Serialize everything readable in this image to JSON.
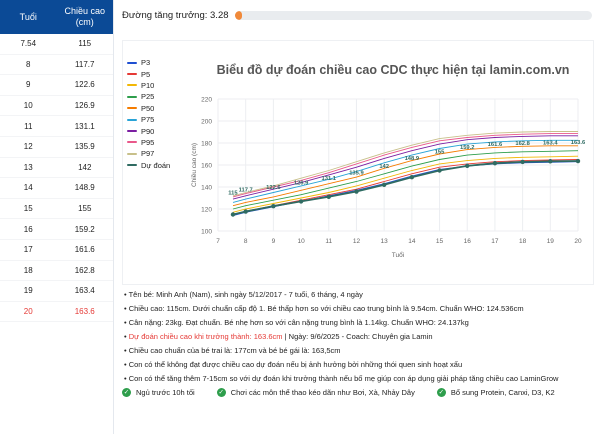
{
  "table": {
    "headers": [
      "Tuổi",
      "Chiều cao\n(cm)"
    ],
    "rows": [
      [
        "7.54",
        "115"
      ],
      [
        "8",
        "117.7"
      ],
      [
        "9",
        "122.6"
      ],
      [
        "10",
        "126.9"
      ],
      [
        "11",
        "131.1"
      ],
      [
        "12",
        "135.9"
      ],
      [
        "13",
        "142"
      ],
      [
        "14",
        "148.9"
      ],
      [
        "15",
        "155"
      ],
      [
        "16",
        "159.2"
      ],
      [
        "17",
        "161.6"
      ],
      [
        "18",
        "162.8"
      ],
      [
        "19",
        "163.4"
      ],
      [
        "20",
        "163.6"
      ]
    ],
    "highlight_index": 13,
    "highlight_color": "#e53935"
  },
  "growth_rate": {
    "label": "Đường tăng trưởng: 3.28",
    "fill_fraction": 0.02,
    "color": "#f0893a"
  },
  "chart_data": {
    "type": "line",
    "title": "Biểu đồ dự đoán chiều cao CDC thực hiện tại lamin.com.vn",
    "xlabel": "Tuổi",
    "ylabel": "Chiều cao (cm)",
    "xlim": [
      7,
      20
    ],
    "ylim": [
      100,
      220
    ],
    "xticks": [
      7,
      8,
      9,
      10,
      11,
      12,
      13,
      14,
      15,
      16,
      17,
      18,
      19,
      20
    ],
    "yticks": [
      100,
      120,
      140,
      160,
      180,
      200,
      220
    ],
    "grid": true,
    "legend_position": "left",
    "x": [
      7.54,
      8,
      9,
      10,
      11,
      12,
      13,
      14,
      15,
      16,
      17,
      18,
      19,
      20
    ],
    "series": [
      {
        "name": "P3",
        "color": "#1f4fd1",
        "values": [
          114,
          117,
          122,
          127,
          132,
          137,
          143,
          150,
          156,
          159,
          161,
          162,
          162.5,
          163
        ]
      },
      {
        "name": "P5",
        "color": "#e53935",
        "values": [
          115,
          118,
          123,
          128,
          133,
          138,
          145,
          152,
          158,
          161,
          163,
          164,
          164.5,
          165
        ]
      },
      {
        "name": "P10",
        "color": "#f2b705",
        "values": [
          117,
          120,
          125,
          130,
          135,
          141,
          148,
          155,
          161,
          164,
          166,
          167,
          167.5,
          168
        ]
      },
      {
        "name": "P25",
        "color": "#2e9e4c",
        "values": [
          120,
          123,
          128,
          133,
          139,
          145,
          152,
          159,
          165,
          169,
          171,
          172,
          172.5,
          173
        ]
      },
      {
        "name": "P50",
        "color": "#f57c00",
        "values": [
          123,
          126,
          131,
          137,
          143,
          149,
          157,
          164,
          170,
          174,
          176,
          177,
          177.5,
          177.5
        ]
      },
      {
        "name": "P75",
        "color": "#29a3d6",
        "values": [
          126,
          129,
          135,
          141,
          147,
          154,
          162,
          169,
          175,
          179,
          181,
          182,
          182.5,
          182.5
        ]
      },
      {
        "name": "P90",
        "color": "#7b1fa2",
        "values": [
          129,
          132,
          138,
          144,
          151,
          158,
          166,
          173,
          179,
          183,
          185,
          186,
          186.5,
          186.5
        ]
      },
      {
        "name": "P95",
        "color": "#e9588a",
        "values": [
          131,
          134,
          140,
          146,
          153,
          161,
          169,
          176,
          182,
          185,
          187,
          188,
          188.5,
          188.5
        ]
      },
      {
        "name": "P97",
        "color": "#c8c08a",
        "values": [
          132,
          135,
          141,
          148,
          155,
          163,
          171,
          178,
          184,
          187,
          189,
          190,
          190.5,
          190.5
        ]
      },
      {
        "name": "Dự đoán",
        "color": "#2f6b62",
        "values": [
          115,
          117.7,
          122.6,
          126.9,
          131.1,
          135.9,
          142,
          148.9,
          155,
          159.2,
          161.6,
          162.8,
          163.4,
          163.6
        ]
      }
    ],
    "point_labels": [
      "115",
      "117.7",
      "122.6",
      "126.9",
      "131.1",
      "135.9",
      "142",
      "148.9",
      "155",
      "159.2",
      "161.6",
      "162.8",
      "163.4",
      "163.6"
    ]
  },
  "info": {
    "lines": [
      {
        "text": "Tên bé: Minh Anh (Nam), sinh ngày 5/12/2017 - 7 tuổi, 6 tháng, 4 ngày"
      },
      {
        "text": "Chiều cao: 115cm. Dưới chuẩn cấp độ 1. Bé thấp hơn so với chiều cao trung bình là 9.54cm. Chuẩn WHO: 124.536cm"
      },
      {
        "text": "Cân nặng: 23kg. Đạt chuẩn. Bé nhẹ hơn so với cân nặng trung bình là 1.14kg. Chuẩn WHO: 24.137kg"
      },
      {
        "red": "Dự đoán chiều cao khi trưởng thành: 163.6cm",
        "rest": " | Ngày: 9/6/2025 - Coach: Chuyên gia Lamin"
      },
      {
        "text": "Chiều cao chuẩn của bé trai là: 177cm và bé bé gái là: 163,5cm"
      },
      {
        "text": "Con có thể không đạt được chiều cao dự đoán nếu bị ảnh hưởng bởi những thói quen sinh hoạt xấu"
      },
      {
        "text": "Con có thể tăng thêm 7-15cm so với dự đoán khi trưởng thành nếu bố mẹ giúp con áp dụng giải pháp tăng chiều cao LaminGrow"
      }
    ],
    "tips": [
      "Ngủ trước 10h tối",
      "Chơi các môn thể thao kéo dãn như Bơi, Xà, Nhảy Dây",
      "Bổ sung Protein, Canxi, D3, K2"
    ],
    "bullet": "•"
  }
}
